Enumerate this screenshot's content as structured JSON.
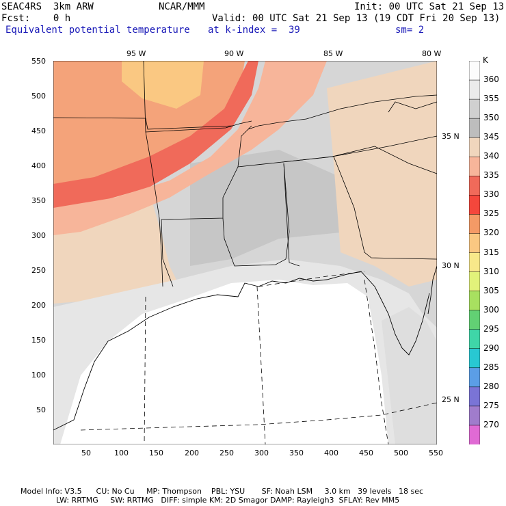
{
  "header": {
    "line1_left": "SEAC4RS  3km ARW",
    "line1_mid": "NCAR/MMM",
    "line1_right": "Init: 00 UTC Sat 21 Sep 13",
    "line2_left": "Fcst:    0 h",
    "line2_right": "Valid: 00 UTC Sat 21 Sep 13 (19 CDT Fri 20 Sep 13)",
    "line3_left": "Equivalent potential temperature",
    "line3_mid": "at k-index =  39",
    "line3_right": "sm= 2"
  },
  "map": {
    "lon_labels": [
      "95 W",
      "90 W",
      "85 W",
      "80 W"
    ],
    "lat_labels": [
      "35 N",
      "30 N",
      "25 N"
    ],
    "y_ticks": [
      "550",
      "500",
      "450",
      "400",
      "350",
      "300",
      "250",
      "200",
      "150",
      "100",
      "50"
    ],
    "x_ticks": [
      "50",
      "100",
      "150",
      "200",
      "250",
      "300",
      "350",
      "400",
      "450",
      "500",
      "550"
    ]
  },
  "colorbar": {
    "unit": "K",
    "levels": [
      "360",
      "355",
      "350",
      "345",
      "340",
      "335",
      "330",
      "325",
      "320",
      "315",
      "310",
      "305",
      "300",
      "295",
      "290",
      "285",
      "280",
      "275",
      "270"
    ],
    "colors": [
      "#fcfcfc",
      "#ebebeb",
      "#d0d0d0",
      "#bdbdbd",
      "#f0d6bd",
      "#f7b59a",
      "#f06a5a",
      "#f4473c",
      "#f49a66",
      "#fac882",
      "#f8e88a",
      "#e2f27a",
      "#a8e060",
      "#62d074",
      "#3fd6a8",
      "#28c8d2",
      "#5b9ee6",
      "#7a74d6",
      "#a07ccc",
      "#e06ad4"
    ]
  },
  "footer": {
    "line1": "Model Info: V3.5      CU: No Cu     MP: Thompson    PBL: YSU       SF: Noah LSM     3.0 km   39 levels   18 sec",
    "line2": "LW: RRTMG     SW: RRTMG   DIFF: simple KM: 2D Smagor DAMP: Rayleigh3  SFLAY: Rev MM5"
  }
}
